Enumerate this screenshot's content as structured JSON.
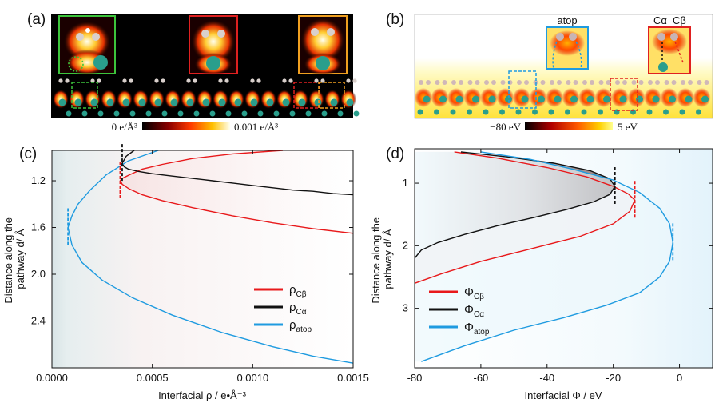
{
  "panels": {
    "a": {
      "label": "(a)",
      "colorbar": {
        "min_label": "0 e/Å³",
        "max_label": "0.001 e/Å³"
      }
    },
    "b": {
      "label": "(b)",
      "annotations": {
        "atop": "atop",
        "c_alpha": "Cα",
        "c_beta": "Cβ"
      },
      "colorbar": {
        "min_label": "−80 eV",
        "max_label": "5 eV"
      }
    },
    "c": {
      "label": "(c)"
    },
    "d": {
      "label": "(d)"
    }
  },
  "colors": {
    "c_beta": "#e8191b",
    "c_alpha": "#111111",
    "atop": "#1f9be0"
  },
  "chart_data": [
    {
      "id": "c",
      "type": "line",
      "xlabel": "Interfacial ρ / e•Å⁻³",
      "ylabel": "Distance along the pathway d/ Å",
      "xlim": [
        0,
        0.0015
      ],
      "ylim": [
        0.94,
        2.8
      ],
      "y_inverted": true,
      "xticks": [
        0,
        0.0005,
        0.001,
        0.0015
      ],
      "xtick_labels": [
        "0.0000",
        "0.0005",
        "0.0010",
        "0.0015"
      ],
      "yticks": [
        1.2,
        1.6,
        2.0,
        2.4
      ],
      "ytick_labels": [
        "1.2",
        "1.6",
        "2.0",
        "2.4"
      ],
      "legend_position": "lower-right",
      "series": [
        {
          "name": "ρ",
          "sub": "Cβ",
          "color_key": "c_beta",
          "min_x": 0.00034,
          "min_y": 1.2,
          "x": [
            0.00115,
            0.0009,
            0.0007,
            0.00055,
            0.00045,
            0.000385,
            0.00035,
            0.00034,
            0.00035,
            0.000385,
            0.00045,
            0.00055,
            0.0007,
            0.0009,
            0.0011,
            0.0013,
            0.0015
          ],
          "y": [
            0.94,
            0.97,
            1.01,
            1.06,
            1.1,
            1.15,
            1.18,
            1.2,
            1.23,
            1.27,
            1.32,
            1.37,
            1.43,
            1.5,
            1.56,
            1.61,
            1.65
          ]
        },
        {
          "name": "ρ",
          "sub": "Cα",
          "color_key": "c_alpha",
          "min_x": 0.00035,
          "min_y": 1.05,
          "x": [
            0.00041,
            0.00037,
            0.00035,
            0.00036,
            0.00038,
            0.00043,
            0.0005,
            0.0006,
            0.0007,
            0.0008,
            0.0009,
            0.001,
            0.0011,
            0.0012,
            0.0013,
            0.0014,
            0.0015
          ],
          "y": [
            0.94,
            0.99,
            1.05,
            1.08,
            1.1,
            1.12,
            1.14,
            1.16,
            1.18,
            1.2,
            1.22,
            1.24,
            1.26,
            1.28,
            1.29,
            1.31,
            1.32
          ]
        },
        {
          "name": "ρ",
          "sub": "atop",
          "color_key": "atop",
          "min_x": 8e-05,
          "min_y": 1.6,
          "x": [
            0.00053,
            0.00038,
            0.00027,
            0.00019,
            0.00013,
            0.0001,
            8e-05,
            0.0001,
            0.00015,
            0.00025,
            0.0004,
            0.0006,
            0.00085,
            0.0011,
            0.0013,
            0.0015
          ],
          "y": [
            0.94,
            1.03,
            1.15,
            1.28,
            1.4,
            1.5,
            1.6,
            1.75,
            1.9,
            2.05,
            2.2,
            2.35,
            2.5,
            2.62,
            2.7,
            2.76
          ]
        }
      ]
    },
    {
      "id": "d",
      "type": "line",
      "xlabel": "Interfacial Φ / eV",
      "ylabel": "Distance along the pathway d/ Å",
      "xlim": [
        -80,
        10
      ],
      "ylim": [
        0.45,
        3.95
      ],
      "y_inverted": true,
      "xticks": [
        -80,
        -60,
        -40,
        -20,
        0
      ],
      "xtick_labels": [
        "-80",
        "-60",
        "-40",
        "-20",
        "0"
      ],
      "yticks": [
        1,
        2,
        3
      ],
      "ytick_labels": [
        "1",
        "2",
        "3"
      ],
      "legend_position": "lower-left",
      "series": [
        {
          "name": "Φ",
          "sub": "Cβ",
          "color_key": "c_beta",
          "min_x": -13.5,
          "min_y": 1.27,
          "x": [
            -68,
            -55,
            -40,
            -28,
            -20,
            -15.5,
            -13.5,
            -15,
            -20,
            -30,
            -45,
            -60,
            -72,
            -80
          ],
          "y": [
            0.5,
            0.6,
            0.75,
            0.9,
            1.05,
            1.17,
            1.27,
            1.45,
            1.65,
            1.85,
            2.05,
            2.25,
            2.45,
            2.6
          ]
        },
        {
          "name": "Φ",
          "sub": "Cα",
          "color_key": "c_alpha",
          "min_x": -19.5,
          "min_y": 1.05,
          "x": [
            -66,
            -52,
            -38,
            -27,
            -21,
            -19.5,
            -21,
            -26,
            -34,
            -44,
            -55,
            -65,
            -73,
            -78,
            -80
          ],
          "y": [
            0.5,
            0.58,
            0.68,
            0.8,
            0.93,
            1.05,
            1.18,
            1.3,
            1.42,
            1.55,
            1.68,
            1.82,
            1.95,
            2.07,
            2.2
          ]
        },
        {
          "name": "Φ",
          "sub": "atop",
          "color_key": "atop",
          "min_x": -2.0,
          "min_y": 1.95,
          "x": [
            -60,
            -45,
            -32,
            -20,
            -12,
            -6,
            -3,
            -2,
            -3,
            -6,
            -12,
            -22,
            -35,
            -50,
            -65,
            -78
          ],
          "y": [
            0.5,
            0.62,
            0.78,
            0.95,
            1.15,
            1.4,
            1.65,
            1.95,
            2.25,
            2.5,
            2.75,
            2.95,
            3.15,
            3.35,
            3.6,
            3.85
          ]
        }
      ]
    }
  ]
}
